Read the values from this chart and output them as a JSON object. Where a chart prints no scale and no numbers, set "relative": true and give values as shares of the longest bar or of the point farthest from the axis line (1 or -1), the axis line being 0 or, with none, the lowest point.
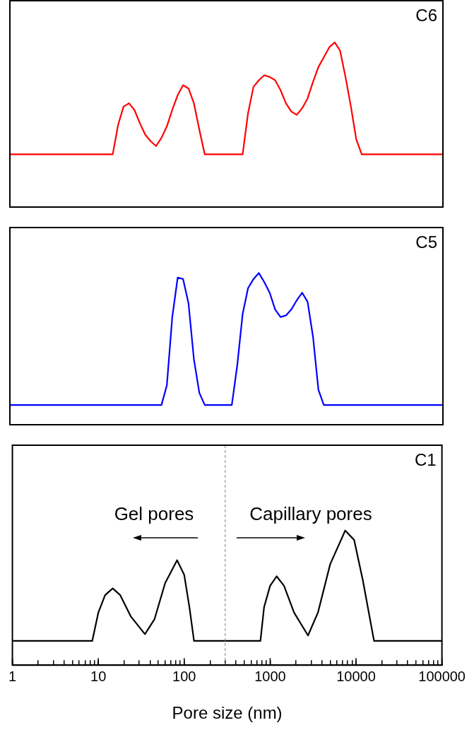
{
  "chart_data": [
    {
      "type": "line",
      "title": "C6",
      "relative": true,
      "legend": false,
      "grid": false,
      "categories": [
        null,
        null,
        null,
        null,
        null,
        null,
        null,
        null,
        null,
        null,
        null,
        null,
        null,
        null,
        null,
        null,
        null,
        null,
        null,
        null,
        null,
        null,
        null,
        null,
        null,
        null,
        null,
        null,
        null,
        null,
        null,
        null,
        null,
        null,
        null,
        null,
        null,
        null,
        null,
        null,
        null,
        null,
        null,
        null,
        null,
        null,
        null,
        null,
        null,
        null,
        null,
        null,
        null,
        null,
        null,
        null,
        null,
        null,
        null,
        null,
        null,
        null,
        null,
        null,
        null,
        null,
        null,
        null,
        null,
        null,
        null,
        null,
        null,
        null,
        null,
        null,
        null,
        null,
        null,
        null,
        null
      ],
      "series": [
        {
          "color": "#ff0000",
          "values": [
            0.32,
            0.32,
            0.32,
            0.32,
            0.32,
            0.32,
            0.32,
            0.32,
            0.32,
            0.32,
            0.32,
            0.32,
            0.32,
            0.32,
            0.32,
            0.32,
            0.32,
            0.32,
            0.32,
            0.32,
            0.5,
            0.61,
            0.63,
            0.59,
            0.51,
            0.44,
            0.4,
            0.37,
            0.42,
            0.49,
            0.59,
            0.68,
            0.74,
            0.72,
            0.63,
            0.47,
            0.32,
            0.32,
            0.32,
            0.32,
            0.32,
            0.32,
            0.32,
            0.32,
            0.57,
            0.73,
            0.77,
            0.8,
            0.79,
            0.77,
            0.71,
            0.63,
            0.58,
            0.56,
            0.6,
            0.66,
            0.76,
            0.85,
            0.91,
            0.97,
            1,
            0.95,
            0.79,
            0.61,
            0.41,
            0.32,
            0.32,
            0.32,
            0.32,
            0.32,
            0.32,
            0.32,
            0.32,
            0.32,
            0.32,
            0.32,
            0.32,
            0.32,
            0.32,
            0.32,
            0.32
          ]
        }
      ]
    },
    {
      "type": "line",
      "title": "C5",
      "relative": true,
      "legend": false,
      "grid": false,
      "categories": [
        null,
        null,
        null,
        null,
        null,
        null,
        null,
        null,
        null,
        null,
        null,
        null,
        null,
        null,
        null,
        null,
        null,
        null,
        null,
        null,
        null,
        null,
        null,
        null,
        null,
        null,
        null,
        null,
        null,
        null,
        null,
        null,
        null,
        null,
        null,
        null,
        null,
        null,
        null,
        null,
        null,
        null,
        null,
        null,
        null,
        null,
        null,
        null,
        null,
        null,
        null,
        null,
        null,
        null,
        null,
        null,
        null,
        null,
        null,
        null,
        null,
        null,
        null,
        null,
        null,
        null,
        null,
        null,
        null,
        null,
        null,
        null,
        null,
        null,
        null,
        null,
        null,
        null,
        null,
        null,
        null
      ],
      "series": [
        {
          "color": "#0000ff",
          "values": [
            0.13,
            0.13,
            0.13,
            0.13,
            0.13,
            0.13,
            0.13,
            0.13,
            0.13,
            0.13,
            0.13,
            0.13,
            0.13,
            0.13,
            0.13,
            0.13,
            0.13,
            0.13,
            0.13,
            0.13,
            0.13,
            0.13,
            0.13,
            0.13,
            0.13,
            0.13,
            0.13,
            0.13,
            0.13,
            0.26,
            0.71,
            0.97,
            0.96,
            0.8,
            0.43,
            0.21,
            0.13,
            0.13,
            0.13,
            0.13,
            0.13,
            0.13,
            0.39,
            0.73,
            0.9,
            0.96,
            1,
            0.94,
            0.87,
            0.76,
            0.71,
            0.72,
            0.76,
            0.82,
            0.87,
            0.81,
            0.58,
            0.23,
            0.13,
            0.13,
            0.13,
            0.13,
            0.13,
            0.13,
            0.13,
            0.13,
            0.13,
            0.13,
            0.13,
            0.13,
            0.13,
            0.13,
            0.13,
            0.13,
            0.13,
            0.13,
            0.13,
            0.13,
            0.13,
            0.13,
            0.13
          ]
        }
      ]
    },
    {
      "type": "line",
      "title": "C1",
      "xlabel": "Pore size (nm)",
      "relative": true,
      "xlim": [
        1,
        100000
      ],
      "log": "x",
      "tick_labels": "x",
      "legend": false,
      "grid": false,
      "annotations": [
        "Gel pores",
        "Capillary pores"
      ],
      "ref_lines": [
        {
          "axis": "x",
          "value": 300,
          "color": "#808080",
          "line_style": "dashed"
        }
      ],
      "xticks": [
        1,
        {
          "value": 2,
          "label": null
        },
        {
          "value": 3,
          "label": null
        },
        {
          "value": 4,
          "label": null
        },
        {
          "value": 5,
          "label": null
        },
        {
          "value": 6,
          "label": null
        },
        {
          "value": 7,
          "label": null
        },
        {
          "value": 8,
          "label": null
        },
        {
          "value": 9,
          "label": null
        },
        10,
        {
          "value": 20,
          "label": null
        },
        {
          "value": 30,
          "label": null
        },
        {
          "value": 40,
          "label": null
        },
        {
          "value": 50,
          "label": null
        },
        {
          "value": 60,
          "label": null
        },
        {
          "value": 70,
          "label": null
        },
        {
          "value": 80,
          "label": null
        },
        {
          "value": 90,
          "label": null
        },
        100,
        {
          "value": 200,
          "label": null
        },
        {
          "value": 300,
          "label": null
        },
        {
          "value": 400,
          "label": null
        },
        {
          "value": 500,
          "label": null
        },
        {
          "value": 600,
          "label": null
        },
        {
          "value": 700,
          "label": null
        },
        {
          "value": 800,
          "label": null
        },
        {
          "value": 900,
          "label": null
        },
        1000,
        {
          "value": 2000,
          "label": null
        },
        {
          "value": 3000,
          "label": null
        },
        {
          "value": 4000,
          "label": null
        },
        {
          "value": 5000,
          "label": null
        },
        {
          "value": 6000,
          "label": null
        },
        {
          "value": 7000,
          "label": null
        },
        {
          "value": 8000,
          "label": null
        },
        {
          "value": 9000,
          "label": null
        },
        10000,
        {
          "value": 20000,
          "label": null
        },
        {
          "value": 30000,
          "label": null
        },
        {
          "value": 40000,
          "label": null
        },
        {
          "value": 50000,
          "label": null
        },
        {
          "value": 60000,
          "label": null
        },
        {
          "value": 70000,
          "label": null
        },
        {
          "value": 80000,
          "label": null
        },
        {
          "value": 90000,
          "label": null
        },
        100000
      ],
      "series": [
        {
          "color": "#000000",
          "x": [
            1,
            8.5,
            10,
            12,
            14.7,
            18,
            24,
            34.9,
            45,
            60,
            82.6,
            100,
            115,
            130,
            771,
            850,
            1000,
            1190,
            1450,
            1900,
            2760,
            3600,
            5000,
            7480,
            9500,
            12000,
            16200,
            100000
          ],
          "values": [
            0.18,
            0.18,
            0.39,
            0.52,
            0.57,
            0.52,
            0.36,
            0.23,
            0.34,
            0.61,
            0.78,
            0.67,
            0.43,
            0.18,
            0.18,
            0.43,
            0.59,
            0.66,
            0.59,
            0.39,
            0.22,
            0.39,
            0.75,
            1,
            0.93,
            0.63,
            0.18,
            0.18
          ]
        }
      ]
    }
  ]
}
